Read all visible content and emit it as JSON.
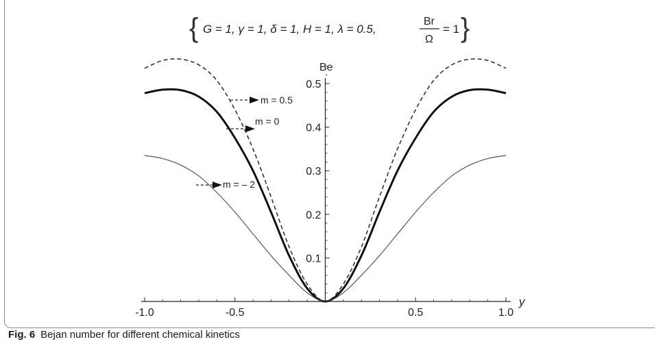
{
  "caption": {
    "label": "Fig. 6",
    "text": "Bejan number for different chemical kinetics"
  },
  "chart_data": {
    "type": "line",
    "parameters": {
      "items": [
        "G = 1",
        "γ = 1",
        "δ = 1",
        "H = 1",
        "λ = 0.5"
      ],
      "fraction_numerator": "Br",
      "fraction_denominator": "Ω",
      "fraction_value": "= 1"
    },
    "xlabel": "y",
    "ylabel": "Be",
    "xlim": [
      -1.0,
      1.0
    ],
    "ylim": [
      0,
      0.57
    ],
    "x_ticks": [
      {
        "value": -1.0,
        "label": "-1.0"
      },
      {
        "value": -0.5,
        "label": "-0.5"
      },
      {
        "value": 0.5,
        "label": "0.5"
      },
      {
        "value": 1.0,
        "label": "1.0"
      }
    ],
    "y_ticks": [
      {
        "value": 0.1,
        "label": "0.1"
      },
      {
        "value": 0.2,
        "label": "0.2"
      },
      {
        "value": 0.3,
        "label": "0.3"
      },
      {
        "value": 0.4,
        "label": "0.4"
      },
      {
        "value": 0.5,
        "label": "0.5"
      }
    ],
    "grid": false,
    "x": [
      -1.0,
      -0.9,
      -0.8,
      -0.7,
      -0.6,
      -0.5,
      -0.4,
      -0.3,
      -0.2,
      -0.1,
      0.0,
      0.1,
      0.2,
      0.3,
      0.4,
      0.5,
      0.6,
      0.7,
      0.8,
      0.9,
      1.0
    ],
    "series": [
      {
        "name": "m = 0.5",
        "style": "dashed",
        "values": [
          0.535,
          0.553,
          0.556,
          0.543,
          0.507,
          0.44,
          0.35,
          0.24,
          0.125,
          0.04,
          0.0,
          0.04,
          0.125,
          0.24,
          0.35,
          0.44,
          0.507,
          0.543,
          0.556,
          0.553,
          0.535
        ]
      },
      {
        "name": "m = 0",
        "style": "thick",
        "values": [
          0.478,
          0.486,
          0.485,
          0.47,
          0.435,
          0.375,
          0.3,
          0.205,
          0.105,
          0.03,
          0.0,
          0.03,
          0.105,
          0.205,
          0.3,
          0.375,
          0.435,
          0.47,
          0.485,
          0.486,
          0.478
        ]
      },
      {
        "name": "m = – 2",
        "style": "thin",
        "values": [
          0.335,
          0.328,
          0.313,
          0.288,
          0.25,
          0.205,
          0.155,
          0.105,
          0.06,
          0.02,
          0.0,
          0.02,
          0.06,
          0.105,
          0.155,
          0.205,
          0.25,
          0.288,
          0.313,
          0.328,
          0.335
        ]
      }
    ],
    "annotations": [
      {
        "text": "m = 0.5",
        "series": "m = 0.5"
      },
      {
        "text": "m = 0",
        "series": "m = 0"
      },
      {
        "text": "m = – 2",
        "series": "m = – 2"
      }
    ]
  }
}
